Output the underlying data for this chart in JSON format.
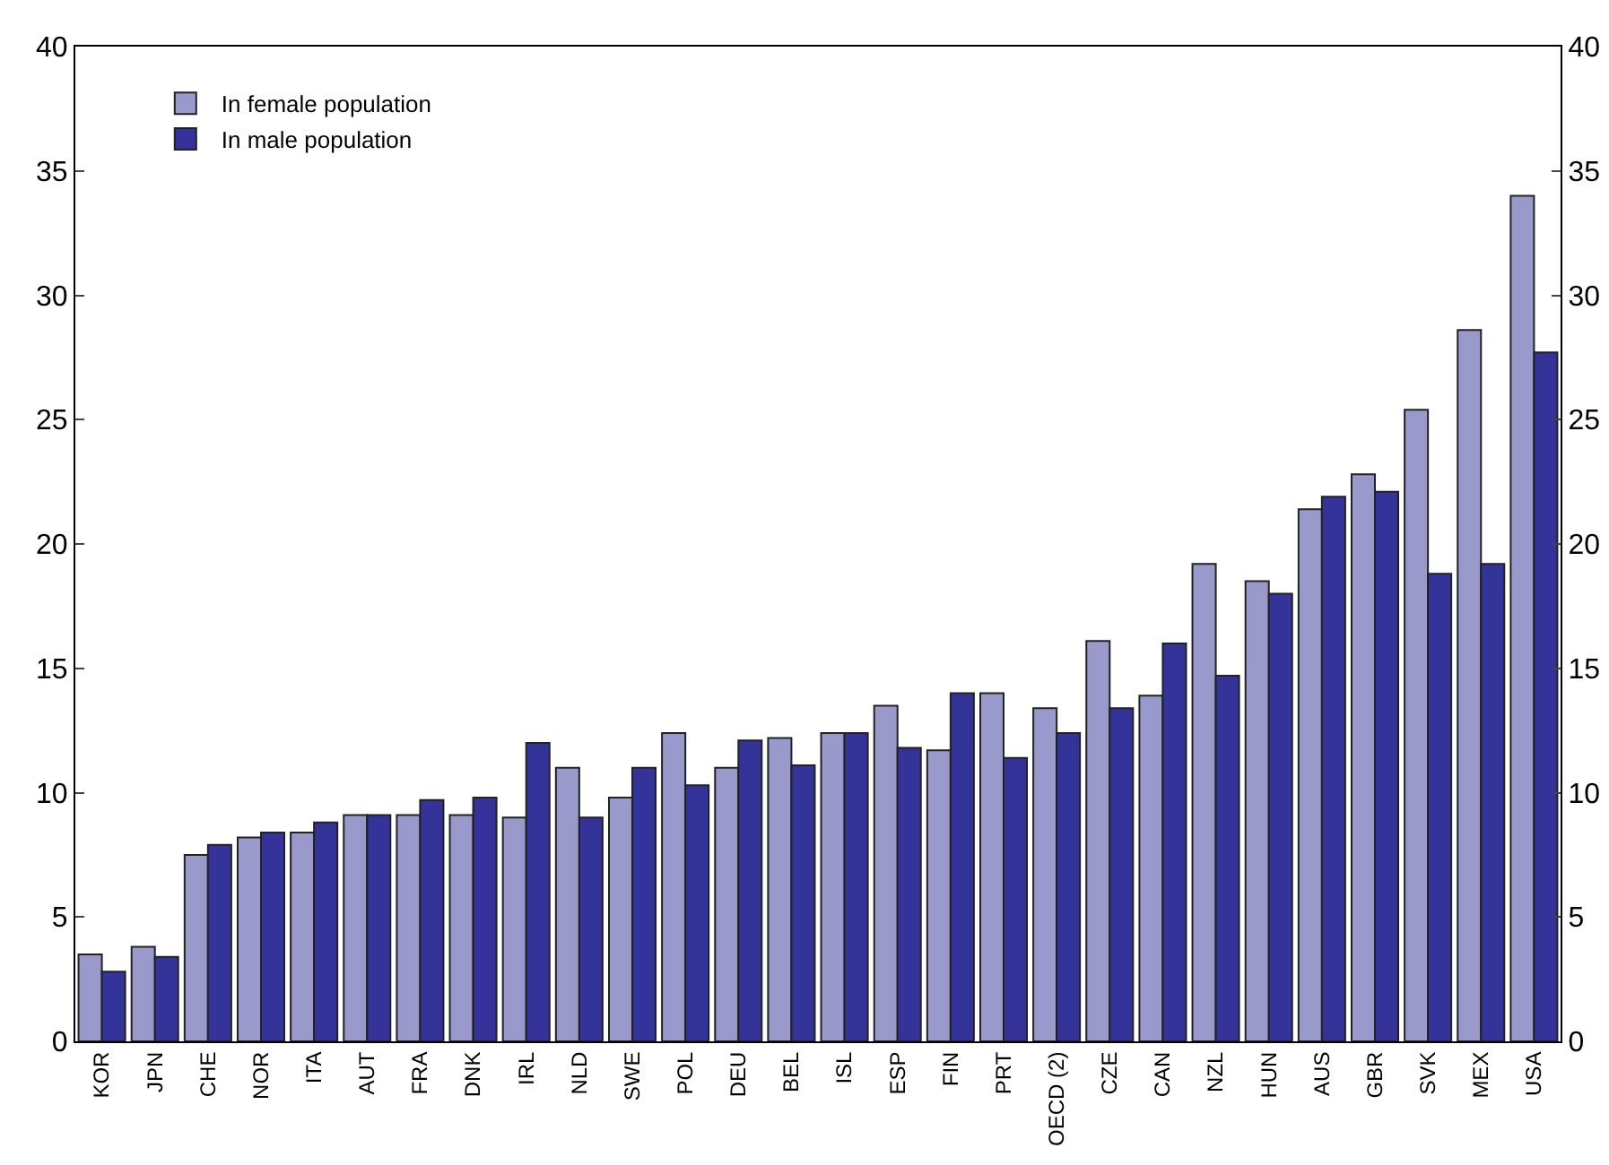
{
  "chart_data": {
    "type": "bar",
    "categories": [
      "KOR",
      "JPN",
      "CHE",
      "NOR",
      "ITA",
      "AUT",
      "FRA",
      "DNK",
      "IRL",
      "NLD",
      "SWE",
      "POL",
      "DEU",
      "BEL",
      "ISL",
      "ESP",
      "FIN",
      "PRT",
      "OECD (2)",
      "CZE",
      "CAN",
      "NZL",
      "HUN",
      "AUS",
      "GBR",
      "SVK",
      "MEX",
      "USA"
    ],
    "series": [
      {
        "name": "In female population",
        "color": "#9999cc",
        "values": [
          3.5,
          3.8,
          7.5,
          8.2,
          8.4,
          9.1,
          9.1,
          9.1,
          9.0,
          11.0,
          9.8,
          12.4,
          11.0,
          12.2,
          12.4,
          13.5,
          11.7,
          14.0,
          13.4,
          16.1,
          13.9,
          19.2,
          18.5,
          21.4,
          22.8,
          25.4,
          28.6,
          34.0
        ]
      },
      {
        "name": "In male population",
        "color": "#333399",
        "values": [
          2.8,
          3.4,
          7.9,
          8.4,
          8.8,
          9.1,
          9.7,
          9.8,
          12.0,
          9.0,
          11.0,
          10.3,
          12.1,
          11.1,
          12.4,
          11.8,
          14.0,
          11.4,
          12.4,
          13.4,
          16.0,
          14.7,
          18.0,
          21.9,
          22.1,
          18.8,
          19.2,
          27.7
        ]
      }
    ],
    "ylim": [
      0,
      40
    ],
    "yticks": [
      0,
      5,
      10,
      15,
      20,
      25,
      30,
      35,
      40
    ],
    "y2lim": [
      0,
      40
    ],
    "y2ticks": [
      0,
      5,
      10,
      15,
      20,
      25,
      30,
      35,
      40
    ],
    "grid": false,
    "legend": "top left"
  }
}
